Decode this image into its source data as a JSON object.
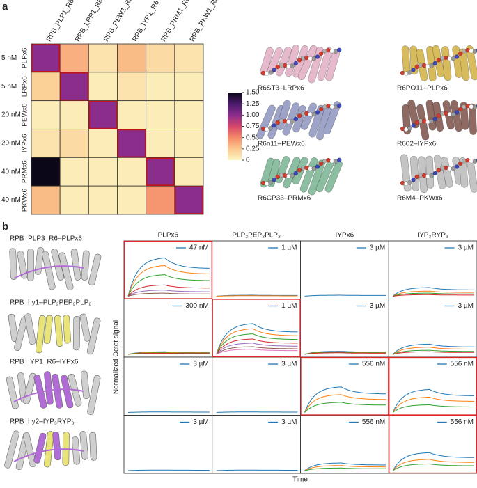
{
  "panel_labels": [
    "a",
    "b"
  ],
  "heatmap": {
    "columns": [
      "RPB_PLP1_R6",
      "RPB_LRP1_R6",
      "RPB_PEW1_R6",
      "RPB_IYP1_R6",
      "RPB_PRM1_R6",
      "RPB_PKW1_R6"
    ],
    "rows": [
      "PLPx6",
      "LRPx6",
      "PEWx6",
      "IYPx6",
      "PRMx6",
      "PKWx6"
    ],
    "concentrations": [
      "5 nM",
      "5 nM",
      "20 nM",
      "20 nM",
      "40 nM",
      "40 nM"
    ],
    "values": [
      [
        1.0,
        0.35,
        0.1,
        0.3,
        0.15,
        0.1
      ],
      [
        0.2,
        1.0,
        0.05,
        0.1,
        0.05,
        0.05
      ],
      [
        0.05,
        0.05,
        1.0,
        0.05,
        0.05,
        0.05
      ],
      [
        0.1,
        0.15,
        0.05,
        1.0,
        0.05,
        0.05
      ],
      [
        1.5,
        0.05,
        0.05,
        0.05,
        1.0,
        0.05
      ],
      [
        0.3,
        0.05,
        0.05,
        0.05,
        0.45,
        1.0
      ]
    ],
    "clim": [
      0,
      1.5
    ],
    "colorbar_ticks": [
      {
        "value": 1.5,
        "label": "1.50"
      },
      {
        "value": 1.25,
        "label": "1.25"
      },
      {
        "value": 1,
        "label": "1.00"
      },
      {
        "value": 0.75,
        "label": "0.75"
      },
      {
        "value": 0.5,
        "label": "0.50"
      },
      {
        "value": 0.25,
        "label": "0.25"
      },
      0
    ],
    "colormap": [
      "#fcf5c2",
      "#fbc88e",
      "#f58a68",
      "#d6466c",
      "#8a2d8d",
      "#4a1a6b",
      "#0b0618"
    ],
    "highlight_color": "#c0141c"
  },
  "structures": [
    {
      "label": "R6ST3–LRPx6",
      "color": "#e7b9cc"
    },
    {
      "label": "R6PO11–PLPx6",
      "color": "#d8bb5c"
    },
    {
      "label": "R6n11–PEWx6",
      "color": "#9ea4c8"
    },
    {
      "label": "R602–IYPx6",
      "color": "#8e6a62"
    },
    {
      "label": "R6CP33–PRMx6",
      "color": "#8cbfa2"
    },
    {
      "label": "R6M4–PKWx6",
      "color": "#c4c4c4"
    }
  ],
  "designs": [
    "RPB_PLP3_R6–PLPx6",
    "RPB_hy1–PLP₂PEP₂PLP₂",
    "RPB_IYP1_R6–IYPx6",
    "RPB_hy2–IYP₃RYP₃"
  ],
  "octet": {
    "columns": [
      "PLPx6",
      "PLP₂PEP₂PLP₂",
      "IYPx6",
      "IYP₃RYP₃"
    ],
    "y_label": "Normalized Octet signal",
    "x_label": "Time",
    "curve_colors": [
      "#1f77b4",
      "#ff7f0e",
      "#2ca02c",
      "#d62728",
      "#9467bd",
      "#8c564b",
      "#e377c2"
    ],
    "highlight_color": "#e0262b",
    "panels": [
      [
        {
          "legend": "47 nM",
          "highlight": true,
          "amplitudes": [
            0.75,
            0.6,
            0.42,
            0.22,
            0.12,
            0.06
          ]
        },
        {
          "legend": "1 µM",
          "highlight": false,
          "amplitudes": [
            0.02,
            0.01
          ]
        },
        {
          "legend": "3 µM",
          "highlight": false,
          "amplitudes": [
            0.02
          ]
        },
        {
          "legend": "3 µM",
          "highlight": false,
          "amplitudes": [
            0.17,
            0.1,
            0.06,
            0.03
          ]
        }
      ],
      [
        {
          "legend": "300 nM",
          "highlight": false,
          "amplitudes": [
            0.05,
            0.04,
            0.03,
            0.02
          ]
        },
        {
          "legend": "1 µM",
          "highlight": true,
          "amplitudes": [
            0.6,
            0.5,
            0.4,
            0.3,
            0.22,
            0.15,
            0.1
          ]
        },
        {
          "legend": "3 µM",
          "highlight": false,
          "amplitudes": [
            0.06,
            0.05,
            0.04,
            0.03
          ]
        },
        {
          "legend": "3 µM",
          "highlight": false,
          "amplitudes": [
            0.2,
            0.14,
            0.08,
            0.05
          ]
        }
      ],
      [
        {
          "legend": "3 µM",
          "highlight": false,
          "amplitudes": [
            0.01
          ]
        },
        {
          "legend": "3 µM",
          "highlight": false,
          "amplitudes": [
            0.01
          ]
        },
        {
          "legend": "556 nM",
          "highlight": true,
          "amplitudes": [
            0.5,
            0.35,
            0.2
          ]
        },
        {
          "legend": "556 nM",
          "highlight": true,
          "amplitudes": [
            0.45,
            0.3,
            0.15
          ]
        }
      ],
      [
        {
          "legend": "3 µM",
          "highlight": false,
          "amplitudes": [
            0.01
          ]
        },
        {
          "legend": "3 µM",
          "highlight": false,
          "amplitudes": [
            0.01
          ]
        },
        {
          "legend": "556 nM",
          "highlight": false,
          "amplitudes": [
            0.15,
            0.1,
            0.05
          ]
        },
        {
          "legend": "556 nM",
          "highlight": true,
          "amplitudes": [
            0.35,
            0.22,
            0.13
          ]
        }
      ]
    ]
  }
}
